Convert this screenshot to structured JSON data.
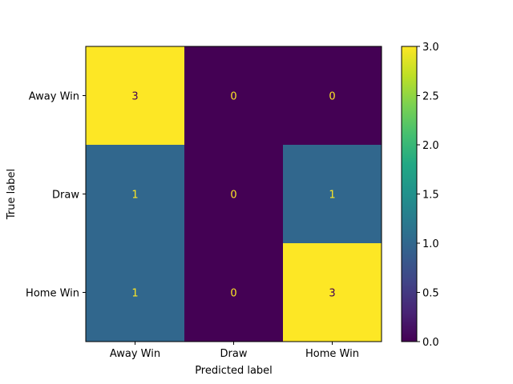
{
  "chart_data": {
    "type": "heatmap",
    "title": "",
    "xlabel": "Predicted label",
    "ylabel": "True label",
    "x_categories": [
      "Away Win",
      "Draw",
      "Home Win"
    ],
    "y_categories": [
      "Away Win",
      "Draw",
      "Home Win"
    ],
    "values": [
      [
        3,
        0,
        0
      ],
      [
        1,
        0,
        1
      ],
      [
        1,
        0,
        3
      ]
    ],
    "colormap": "viridis",
    "color_range": [
      0.0,
      3.0
    ],
    "colorbar_ticks": [
      "0.0",
      "0.5",
      "1.0",
      "1.5",
      "2.0",
      "2.5",
      "3.0"
    ],
    "colors": {
      "low": "#440154",
      "mid": "#21918c",
      "high": "#fde725",
      "value_1": "#31688e",
      "text_on_dark": "#fde725",
      "text_on_light": "#440154"
    }
  }
}
